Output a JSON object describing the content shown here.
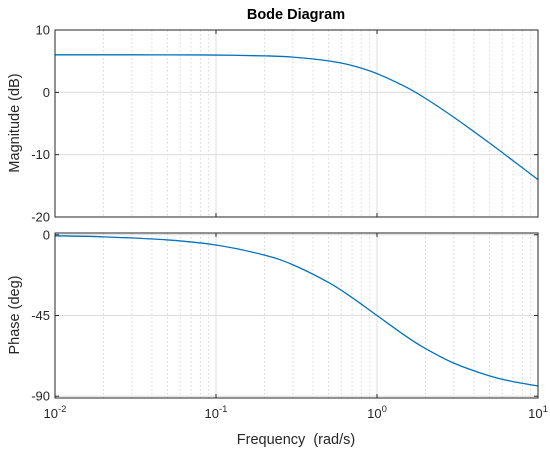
{
  "chart_data": {
    "type": "line",
    "title": "Bode Diagram",
    "xlabel": "Frequency  (rad/s)",
    "xscale": "log",
    "xlim": [
      0.01,
      10
    ],
    "x_ticks": [
      {
        "value": 0.01,
        "base": "10",
        "exp": "-2"
      },
      {
        "value": 0.1,
        "base": "10",
        "exp": "-1"
      },
      {
        "value": 1,
        "base": "10",
        "exp": "0"
      },
      {
        "value": 10,
        "base": "10",
        "exp": "1"
      }
    ],
    "grid": true,
    "line_color": "#0072bd",
    "panels": [
      {
        "ylabel": "Magnitude (dB)",
        "ylim": [
          -20,
          10
        ],
        "yticks": [
          10,
          0,
          -10,
          -20
        ],
        "ytick_labels": [
          "10",
          "0",
          "-10",
          "-20"
        ],
        "series": [
          {
            "x": [
              0.01,
              0.02,
              0.05,
              0.1,
              0.2,
              0.3,
              0.5,
              0.7,
              1,
              1.5,
              2,
              3,
              5,
              7,
              10
            ],
            "y": [
              6.02,
              6.02,
              6.01,
              5.98,
              5.85,
              5.65,
              5.05,
              4.3,
              3.0,
              0.9,
              -0.97,
              -4.0,
              -8.13,
              -10.97,
              -14.0
            ]
          }
        ]
      },
      {
        "ylabel": "Phase (deg)",
        "ylim": [
          -91,
          1
        ],
        "yticks": [
          0,
          -45,
          -90
        ],
        "ytick_labels": [
          "0",
          "-45",
          "-90"
        ],
        "series": [
          {
            "x": [
              0.01,
              0.02,
              0.05,
              0.1,
              0.2,
              0.3,
              0.5,
              0.7,
              1,
              1.5,
              2,
              3,
              5,
              7,
              10
            ],
            "y": [
              -0.57,
              -1.15,
              -2.86,
              -5.71,
              -11.31,
              -16.7,
              -26.57,
              -35.0,
              -45.0,
              -56.31,
              -63.43,
              -71.57,
              -78.69,
              -81.87,
              -84.29
            ]
          }
        ]
      }
    ]
  }
}
